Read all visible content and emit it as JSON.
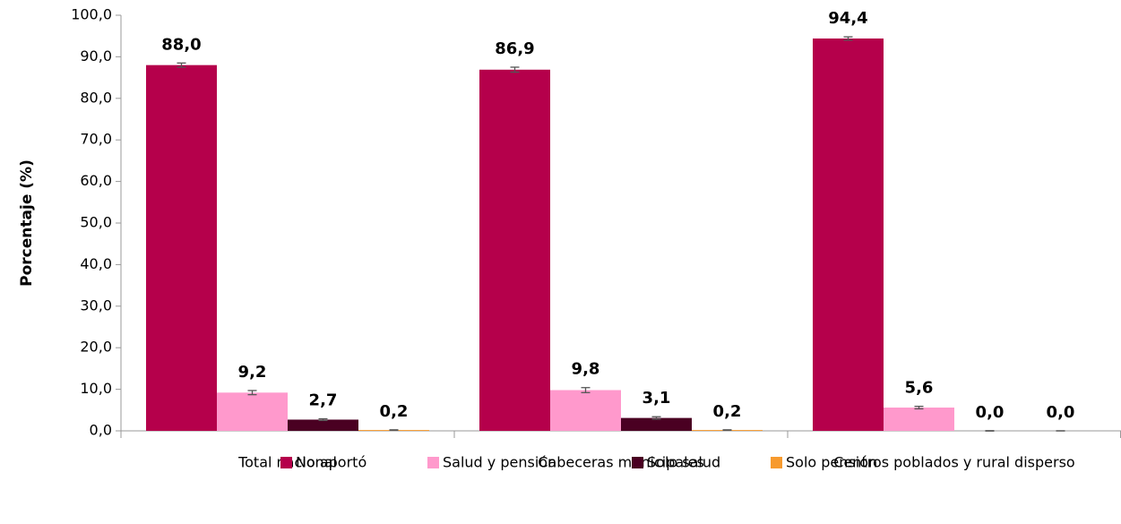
{
  "chart_data": {
    "type": "bar",
    "y_label": "Porcentaje (%)",
    "categories": [
      "Total nacional",
      "Cabeceras municipales",
      "Centros poblados y rural disperso"
    ],
    "series": [
      {
        "name": "No aportó",
        "color": "#b5004b",
        "values": [
          88.0,
          86.9,
          94.4
        ],
        "value_labels": [
          "88,0",
          "86,9",
          "94,4"
        ],
        "errors": [
          0.5,
          0.6,
          0.4
        ]
      },
      {
        "name": "Salud y pensión",
        "color": "#ff99cc",
        "values": [
          9.2,
          9.8,
          5.6
        ],
        "value_labels": [
          "9,2",
          "9,8",
          "5,6"
        ],
        "errors": [
          0.5,
          0.6,
          0.3
        ]
      },
      {
        "name": "Solo salud",
        "color": "#4a0022",
        "values": [
          2.7,
          3.1,
          0.0
        ],
        "value_labels": [
          "2,7",
          "3,1",
          "0,0"
        ],
        "errors": [
          0.2,
          0.3,
          0.05
        ]
      },
      {
        "name": "Solo pensión",
        "color": "#f79a2e",
        "values": [
          0.2,
          0.2,
          0.0
        ],
        "value_labels": [
          "0,2",
          "0,2",
          "0,0"
        ],
        "errors": [
          0.05,
          0.05,
          0.02
        ]
      }
    ],
    "ylim": [
      0,
      100
    ],
    "yticks": [
      {
        "value": 0,
        "label": "0,0"
      },
      {
        "value": 10,
        "label": "10,0"
      },
      {
        "value": 20,
        "label": "20,0"
      },
      {
        "value": 30,
        "label": "30,0"
      },
      {
        "value": 40,
        "label": "40,0"
      },
      {
        "value": 50,
        "label": "50,0"
      },
      {
        "value": 60,
        "label": "60,0"
      },
      {
        "value": 70,
        "label": "70,0"
      },
      {
        "value": 80,
        "label": "80,0"
      },
      {
        "value": 90,
        "label": "90,0"
      },
      {
        "value": 100,
        "label": "100,0"
      }
    ],
    "legend": "bottom"
  }
}
